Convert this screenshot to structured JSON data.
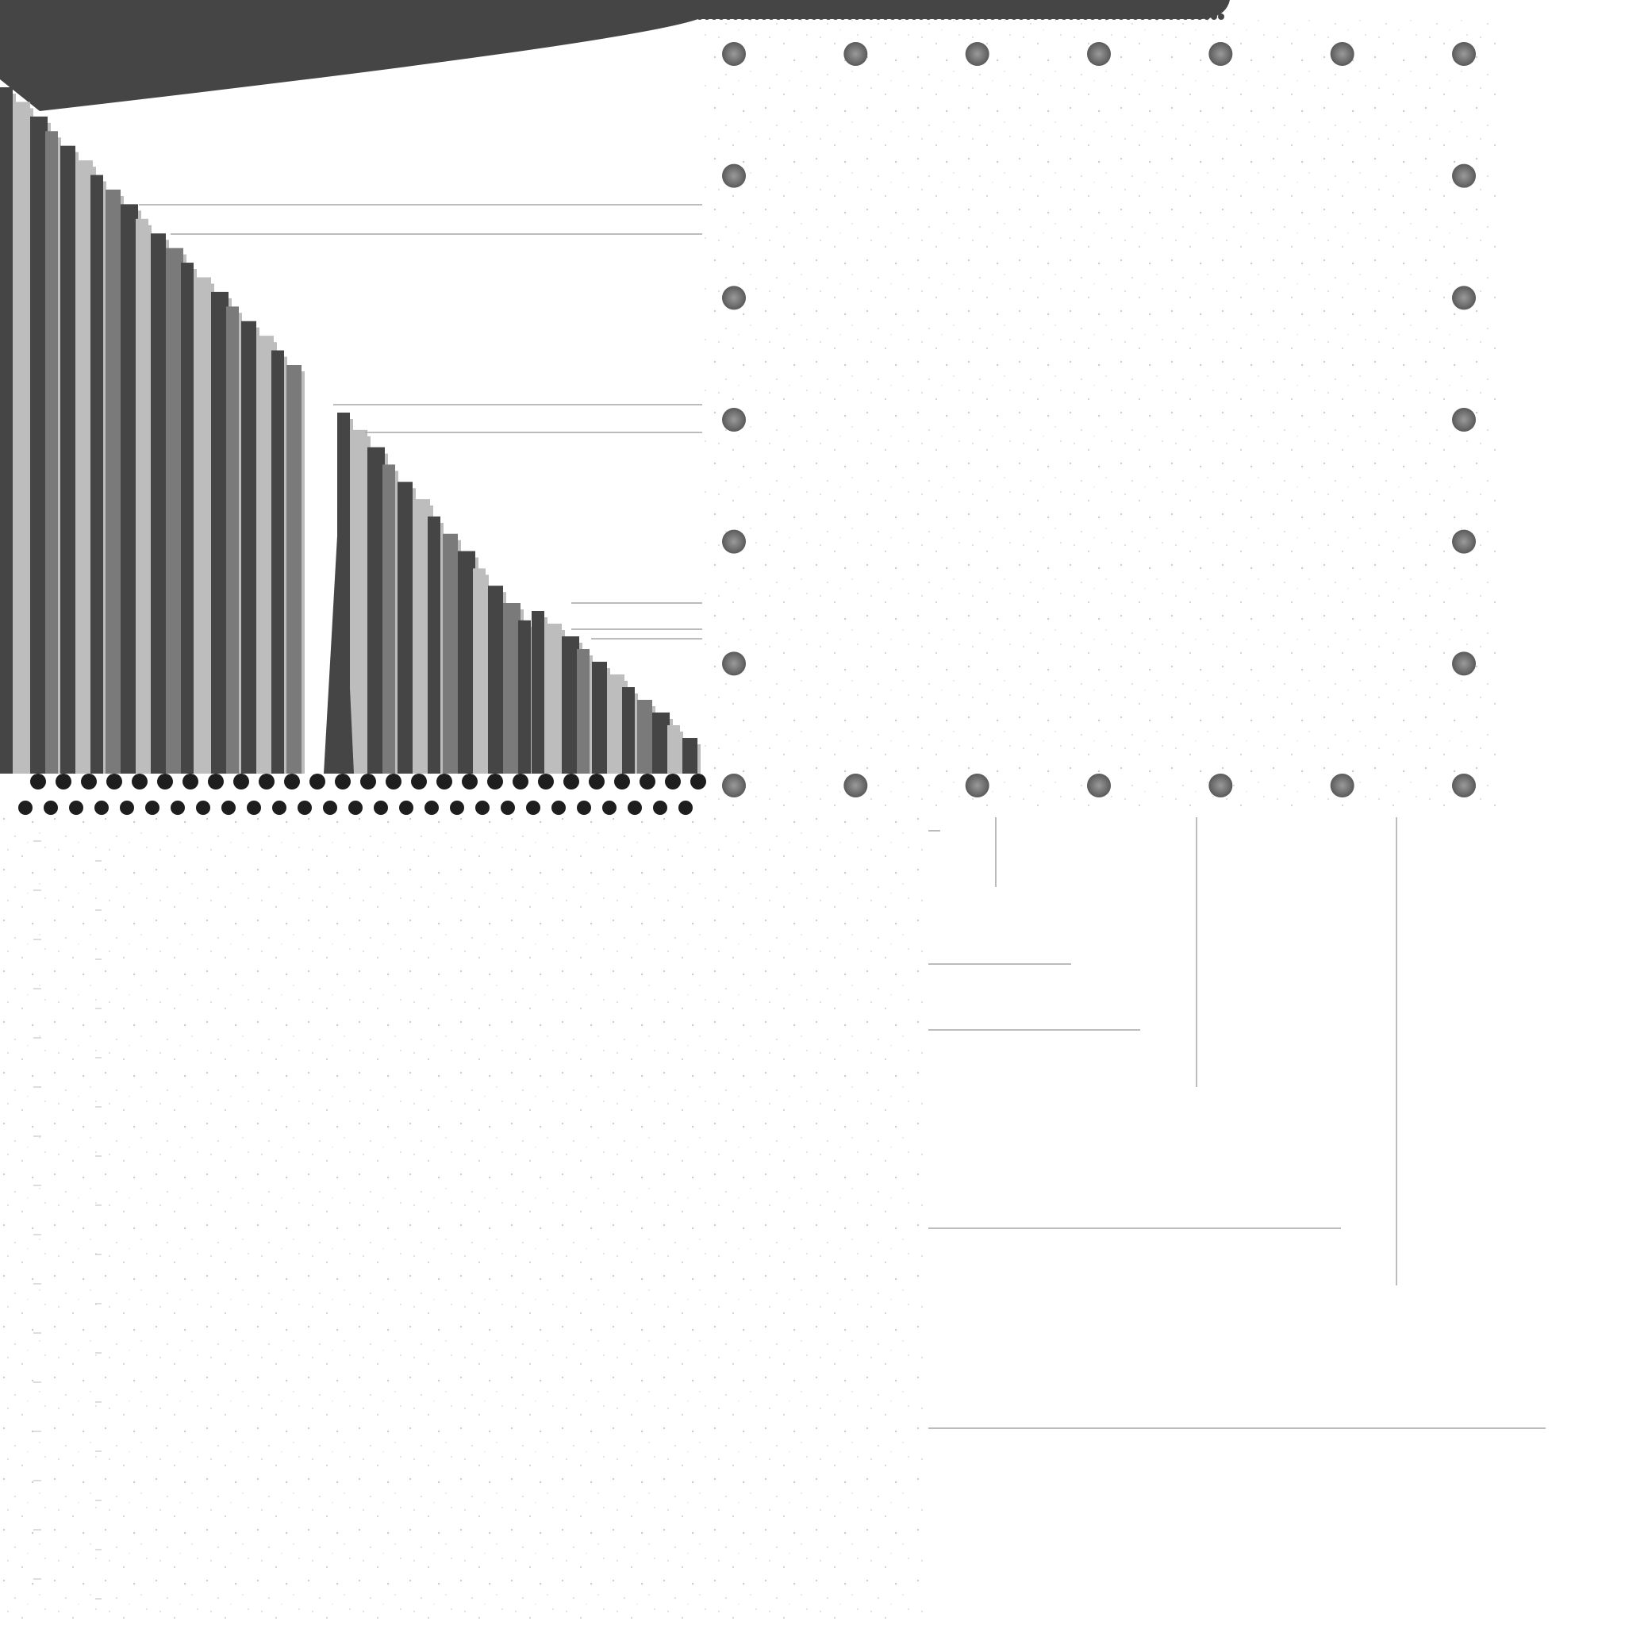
{
  "colors": {
    "background": "#ffffff",
    "dark": "#454545",
    "mid_gray": "#7a7a7a",
    "light_gray": "#bdbdbd",
    "texture": "#c9c9c9",
    "grid_line": "#a6a6a6",
    "rivet": "#6e6e6e",
    "stud": "#1e1e1e"
  },
  "icons": {
    "rivet": "rivet-icon",
    "stud": "stud-icon"
  },
  "rivet_count_per_side": 7
}
